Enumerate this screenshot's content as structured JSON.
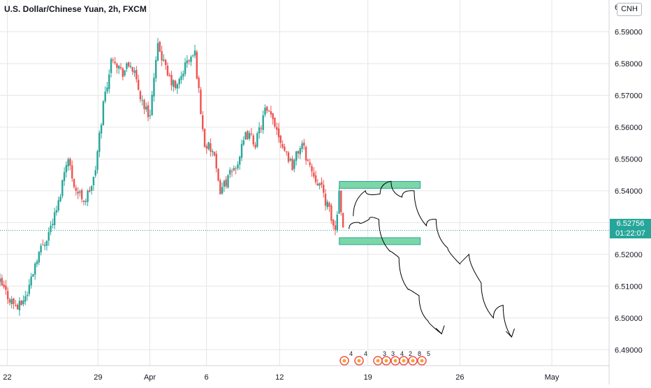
{
  "chart_data": {
    "type": "candlestick",
    "title": "U.S. Dollar/Chinese Yuan, 2h, FXCM",
    "currency_badge": "CNH",
    "y_axis": {
      "range": [
        6.485,
        6.6
      ],
      "ticks": [
        "6.59000",
        "6.58000",
        "6.57000",
        "6.56000",
        "6.55000",
        "6.54000",
        "6.53000",
        "6.52000",
        "6.51000",
        "6.50000",
        "6.49000"
      ],
      "top_clipped_label": "6"
    },
    "x_axis": {
      "ticks": [
        "22",
        "29",
        "Apr",
        "6",
        "12",
        "19",
        "26",
        "May"
      ]
    },
    "last_price": "6.52756",
    "countdown": "01:22:07",
    "colors": {
      "up": "#26a69a",
      "down": "#ef5350",
      "zone_fill": "#7bd6a8",
      "zone_border": "#26a69a",
      "grid": "#e6e6e6",
      "projection": "#000000"
    },
    "price_path": [
      [
        0,
        6.511
      ],
      [
        0.016,
        6.506
      ],
      [
        0.03,
        6.503
      ],
      [
        0.045,
        6.508
      ],
      [
        0.06,
        6.519
      ],
      [
        0.078,
        6.526
      ],
      [
        0.095,
        6.535
      ],
      [
        0.11,
        6.551
      ],
      [
        0.125,
        6.54
      ],
      [
        0.14,
        6.537
      ],
      [
        0.155,
        6.544
      ],
      [
        0.17,
        6.568
      ],
      [
        0.185,
        6.583
      ],
      [
        0.2,
        6.577
      ],
      [
        0.215,
        6.58
      ],
      [
        0.23,
        6.57
      ],
      [
        0.245,
        6.563
      ],
      [
        0.26,
        6.586
      ],
      [
        0.275,
        6.576
      ],
      [
        0.29,
        6.572
      ],
      [
        0.305,
        6.58
      ],
      [
        0.32,
        6.583
      ],
      [
        0.335,
        6.555
      ],
      [
        0.35,
        6.552
      ],
      [
        0.36,
        6.54
      ],
      [
        0.375,
        6.544
      ],
      [
        0.39,
        6.549
      ],
      [
        0.405,
        6.558
      ],
      [
        0.42,
        6.555
      ],
      [
        0.435,
        6.565
      ],
      [
        0.45,
        6.562
      ],
      [
        0.465,
        6.554
      ],
      [
        0.48,
        6.548
      ],
      [
        0.495,
        6.555
      ],
      [
        0.51,
        6.547
      ],
      [
        0.525,
        6.542
      ],
      [
        0.54,
        6.534
      ],
      [
        0.55,
        6.527
      ],
      [
        0.557,
        6.54
      ],
      [
        0.566,
        6.525
      ]
    ],
    "zones": [
      {
        "x_start": 0.557,
        "x_end": 0.69,
        "low": 6.5412,
        "high": 6.5425
      },
      {
        "x_start": 0.557,
        "x_end": 0.69,
        "low": 6.5235,
        "high": 6.5248
      }
    ],
    "projections": [
      [
        [
          0.58,
          6.532
        ],
        [
          0.6,
          6.54
        ],
        [
          0.624,
          6.539
        ],
        [
          0.642,
          6.543
        ],
        [
          0.66,
          6.538
        ],
        [
          0.68,
          6.54
        ],
        [
          0.7,
          6.529
        ],
        [
          0.716,
          6.531
        ],
        [
          0.735,
          6.522
        ],
        [
          0.755,
          6.517
        ],
        [
          0.77,
          6.52
        ],
        [
          0.79,
          6.511
        ],
        [
          0.81,
          6.5
        ],
        [
          0.826,
          6.504
        ],
        [
          0.84,
          6.494
        ]
      ],
      [
        [
          0.573,
          6.528
        ],
        [
          0.59,
          6.53
        ],
        [
          0.606,
          6.531
        ],
        [
          0.622,
          6.531
        ],
        [
          0.64,
          6.521
        ],
        [
          0.655,
          6.519
        ],
        [
          0.67,
          6.509
        ],
        [
          0.688,
          6.507
        ],
        [
          0.703,
          6.499
        ],
        [
          0.725,
          6.495
        ]
      ]
    ],
    "event_markers": [
      "4",
      "4",
      "3",
      "3",
      "4",
      "2",
      "8",
      "5"
    ]
  }
}
